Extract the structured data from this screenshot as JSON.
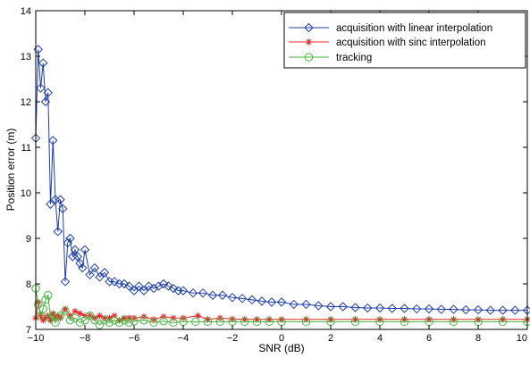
{
  "chart_data": {
    "type": "line",
    "title": "",
    "xlabel": "SNR (dB)",
    "ylabel": "Position error (m)",
    "xlim": [
      -10,
      10
    ],
    "ylim": [
      7,
      14
    ],
    "xticks": [
      "−10",
      "−8",
      "−6",
      "−4",
      "−2",
      "0",
      "2",
      "4",
      "6",
      "8",
      "10"
    ],
    "yticks": [
      "7",
      "8",
      "9",
      "10",
      "11",
      "12",
      "13",
      "14"
    ],
    "legend_position": "top-right",
    "grid": false,
    "colors": {
      "linear": "#1f3fa8",
      "sinc": "#e8242a",
      "tracking": "#43b53a"
    },
    "series": [
      {
        "name": "acquisition with linear interpolation",
        "marker": "diamond",
        "x": [
          -10,
          -9.9,
          -9.8,
          -9.7,
          -9.6,
          -9.5,
          -9.4,
          -9.3,
          -9.2,
          -9.1,
          -9.0,
          -8.9,
          -8.8,
          -8.7,
          -8.6,
          -8.5,
          -8.4,
          -8.3,
          -8.2,
          -8.1,
          -8.0,
          -7.8,
          -7.6,
          -7.4,
          -7.2,
          -7.0,
          -6.8,
          -6.6,
          -6.4,
          -6.2,
          -6.0,
          -5.8,
          -5.6,
          -5.4,
          -5.2,
          -5.0,
          -4.8,
          -4.6,
          -4.4,
          -4.2,
          -4.0,
          -3.6,
          -3.2,
          -2.8,
          -2.4,
          -2.0,
          -1.6,
          -1.2,
          -0.8,
          -0.4,
          0.0,
          0.5,
          1.0,
          1.5,
          2.0,
          2.5,
          3.0,
          3.5,
          4.0,
          4.5,
          5.0,
          5.5,
          6.0,
          6.5,
          7.0,
          7.5,
          8.0,
          8.5,
          9.0,
          9.5,
          10.0
        ],
        "y": [
          11.2,
          13.15,
          12.3,
          12.85,
          12.0,
          12.2,
          9.75,
          11.15,
          9.85,
          9.15,
          9.85,
          9.65,
          8.05,
          8.9,
          9.0,
          8.6,
          8.75,
          8.6,
          8.45,
          8.35,
          8.75,
          8.2,
          8.35,
          8.15,
          8.25,
          8.05,
          8.05,
          8.0,
          8.0,
          7.95,
          7.85,
          7.95,
          7.85,
          7.95,
          7.9,
          7.95,
          8.0,
          7.95,
          7.9,
          7.85,
          7.85,
          7.8,
          7.8,
          7.75,
          7.75,
          7.7,
          7.68,
          7.65,
          7.62,
          7.6,
          7.6,
          7.55,
          7.55,
          7.52,
          7.5,
          7.5,
          7.48,
          7.47,
          7.47,
          7.46,
          7.46,
          7.45,
          7.45,
          7.44,
          7.44,
          7.43,
          7.43,
          7.42,
          7.42,
          7.42,
          7.42
        ]
      },
      {
        "name": "acquisition with sinc interpolation",
        "marker": "star",
        "x": [
          -10,
          -9.9,
          -9.8,
          -9.7,
          -9.6,
          -9.5,
          -9.4,
          -9.3,
          -9.2,
          -9.1,
          -9.0,
          -8.8,
          -8.6,
          -8.4,
          -8.2,
          -8.0,
          -7.8,
          -7.6,
          -7.4,
          -7.2,
          -7.0,
          -6.8,
          -6.6,
          -6.4,
          -6.2,
          -6.0,
          -5.6,
          -5.2,
          -4.8,
          -4.4,
          -4.0,
          -3.4,
          -3.0,
          -2.5,
          -2.0,
          -1.5,
          -1.0,
          -0.5,
          0.0,
          1.0,
          2.0,
          3.0,
          4.0,
          5.0,
          6.0,
          7.0,
          8.0,
          9.0,
          10.0
        ],
        "y": [
          7.25,
          7.6,
          7.3,
          7.2,
          7.25,
          7.3,
          7.2,
          7.35,
          7.25,
          7.3,
          7.25,
          7.45,
          7.3,
          7.4,
          7.35,
          7.3,
          7.3,
          7.25,
          7.3,
          7.25,
          7.25,
          7.3,
          7.2,
          7.25,
          7.25,
          7.25,
          7.28,
          7.22,
          7.28,
          7.25,
          7.25,
          7.3,
          7.22,
          7.25,
          7.23,
          7.22,
          7.22,
          7.22,
          7.22,
          7.22,
          7.22,
          7.22,
          7.22,
          7.22,
          7.22,
          7.22,
          7.22,
          7.22,
          7.22
        ]
      },
      {
        "name": "tracking",
        "marker": "circle",
        "x": [
          -10,
          -9.9,
          -9.8,
          -9.7,
          -9.6,
          -9.5,
          -9.4,
          -9.3,
          -9.2,
          -9.0,
          -8.8,
          -8.6,
          -8.4,
          -8.2,
          -8.0,
          -7.8,
          -7.6,
          -7.4,
          -7.2,
          -7.0,
          -6.8,
          -6.6,
          -6.4,
          -6.2,
          -6.0,
          -5.6,
          -5.2,
          -4.8,
          -4.4,
          -4.0,
          -3.5,
          -3.0,
          -2.5,
          -2.0,
          -1.5,
          -1.0,
          -0.5,
          0.0,
          1.0,
          2.0,
          3.0,
          4.0,
          5.0,
          6.0,
          7.0,
          8.0,
          9.0,
          10.0
        ],
        "y": [
          7.9,
          7.55,
          7.3,
          7.45,
          7.65,
          7.75,
          7.25,
          7.3,
          7.15,
          7.3,
          7.4,
          7.2,
          7.25,
          7.15,
          7.2,
          7.3,
          7.2,
          7.1,
          7.2,
          7.15,
          7.2,
          7.15,
          7.2,
          7.15,
          7.18,
          7.2,
          7.15,
          7.18,
          7.15,
          7.17,
          7.17,
          7.17,
          7.17,
          7.17,
          7.17,
          7.17,
          7.17,
          7.17,
          7.17,
          7.17,
          7.17,
          7.17,
          7.17,
          7.17,
          7.17,
          7.17,
          7.17,
          7.17
        ]
      }
    ]
  }
}
